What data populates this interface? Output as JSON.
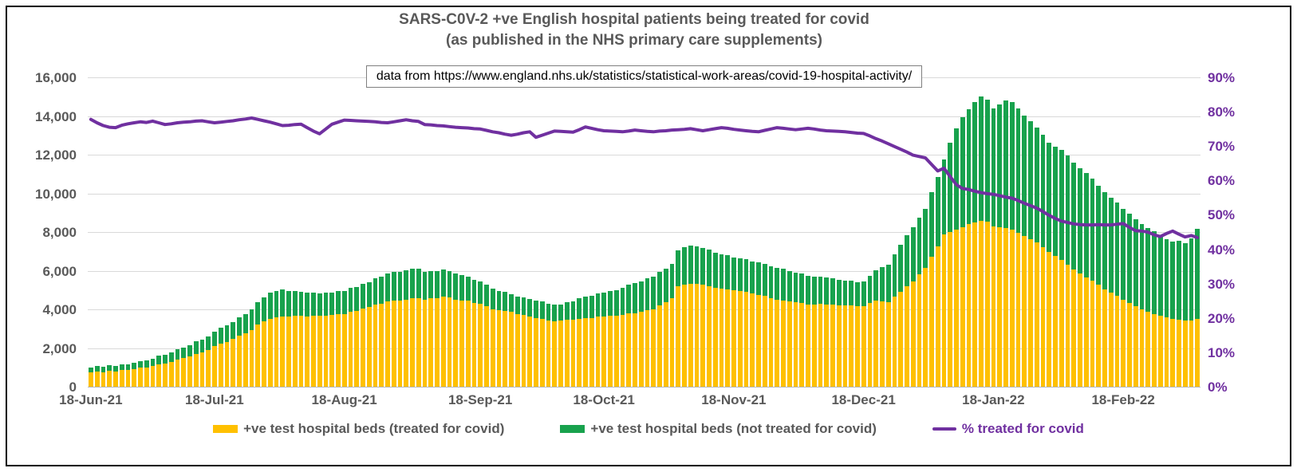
{
  "figure": {
    "title_line1": "SARS-C0V-2 +ve English hospital patients being treated for covid",
    "title_line2": "(as published in the NHS primary care supplements)",
    "source_note": "data from https://www.england.nhs.uk/statistics/statistical-work-areas/covid-19-hospital-activity/"
  },
  "colors": {
    "treated_bar": "#FFC000",
    "not_treated_bar": "#18A24D",
    "pct_line": "#7030A0",
    "axis_text": "#595959",
    "right_axis_text": "#7030A0",
    "gridline": "#D9D9D9"
  },
  "legend": {
    "treated_label": "+ve test hospital beds (treated for covid)",
    "not_treated_label": "+ve test hospital beds (not treated for covid)",
    "pct_label": "% treated for covid"
  },
  "chart_data": {
    "type": "bar",
    "subtype": "stacked-bars-with-line",
    "title": "SARS-C0V-2 +ve English hospital patients being treated for covid (as published in the NHS primary care supplements)",
    "grid": "horizontal",
    "legend_position": "bottom",
    "left_axis": {
      "max": 16000,
      "ticks": [
        {
          "value": 0,
          "label": "0"
        },
        {
          "value": 2000,
          "label": "2,000"
        },
        {
          "value": 4000,
          "label": "4,000"
        },
        {
          "value": 6000,
          "label": "6,000"
        },
        {
          "value": 8000,
          "label": "8,000"
        },
        {
          "value": 10000,
          "label": "10,000"
        },
        {
          "value": 12000,
          "label": "12,000"
        },
        {
          "value": 14000,
          "label": "14,000"
        },
        {
          "value": 16000,
          "label": "16,000"
        }
      ]
    },
    "right_axis": {
      "max": 90,
      "ticks": [
        {
          "value": 0,
          "label": "0%"
        },
        {
          "value": 10,
          "label": "10%"
        },
        {
          "value": 20,
          "label": "20%"
        },
        {
          "value": 30,
          "label": "30%"
        },
        {
          "value": 40,
          "label": "40%"
        },
        {
          "value": 50,
          "label": "50%"
        },
        {
          "value": 60,
          "label": "60%"
        },
        {
          "value": 70,
          "label": "70%"
        },
        {
          "value": 80,
          "label": "80%"
        },
        {
          "value": 90,
          "label": "90%"
        }
      ]
    },
    "x_ticks": [
      {
        "label": "18-Jun-21",
        "index": 0
      },
      {
        "label": "18-Jul-21",
        "index": 20
      },
      {
        "label": "18-Aug-21",
        "index": 41
      },
      {
        "label": "18-Sep-21",
        "index": 63
      },
      {
        "label": "18-Oct-21",
        "index": 83
      },
      {
        "label": "18-Nov-21",
        "index": 104
      },
      {
        "label": "18-Dec-21",
        "index": 125
      },
      {
        "label": "18-Jan-22",
        "index": 146
      },
      {
        "label": "18-Feb-22",
        "index": 167
      }
    ],
    "series": [
      {
        "name": "+ve test hospital beds (treated for covid)",
        "type": "bar",
        "stack": "beds",
        "axis": "left",
        "color": "#FFC000",
        "values": [
          790,
          830,
          795,
          860,
          840,
          890,
          895,
          950,
          1020,
          1035,
          1100,
          1195,
          1250,
          1325,
          1460,
          1530,
          1610,
          1750,
          1820,
          1950,
          2130,
          2270,
          2350,
          2500,
          2685,
          2790,
          2980,
          3250,
          3420,
          3550,
          3630,
          3660,
          3655,
          3700,
          3700,
          3690,
          3710,
          3700,
          3730,
          3760,
          3800,
          3810,
          3915,
          3960,
          4090,
          4150,
          4270,
          4330,
          4450,
          4500,
          4495,
          4550,
          4605,
          4620,
          4550,
          4620,
          4630,
          4700,
          4655,
          4555,
          4510,
          4475,
          4385,
          4350,
          4225,
          4060,
          3985,
          3970,
          3900,
          3800,
          3760,
          3660,
          3600,
          3565,
          3475,
          3440,
          3445,
          3500,
          3500,
          3565,
          3600,
          3605,
          3655,
          3660,
          3710,
          3710,
          3760,
          3825,
          3850,
          3905,
          4010,
          4060,
          4260,
          4400,
          4600,
          5250,
          5320,
          5360,
          5345,
          5300,
          5255,
          5145,
          5100,
          5080,
          5020,
          5000,
          4950,
          4850,
          4800,
          4730,
          4615,
          4550,
          4515,
          4435,
          4400,
          4365,
          4300,
          4285,
          4315,
          4300,
          4295,
          4245,
          4240,
          4250,
          4210,
          4220,
          4365,
          4480,
          4470,
          4420,
          4690,
          4930,
          5235,
          5500,
          5850,
          6170,
          6750,
          7300,
          7900,
          8050,
          8150,
          8300,
          8450,
          8540,
          8610,
          8560,
          8350,
          8300,
          8250,
          8150,
          8020,
          7850,
          7690,
          7500,
          7270,
          7000,
          6785,
          6600,
          6365,
          6100,
          5885,
          5700,
          5515,
          5300,
          5085,
          4900,
          4740,
          4550,
          4390,
          4200,
          4035,
          3900,
          3815,
          3700,
          3610,
          3550,
          3500,
          3480,
          3450,
          3540
        ]
      },
      {
        "name": "+ve test hospital beds (not treated for covid)",
        "type": "bar",
        "stack": "beds",
        "axis": "left",
        "color": "#18A24D",
        "values": [
          230,
          270,
          265,
          290,
          290,
          320,
          305,
          330,
          360,
          365,
          400,
          435,
          450,
          475,
          530,
          550,
          580,
          630,
          660,
          710,
          770,
          820,
          850,
          900,
          965,
          1010,
          1070,
          1150,
          1260,
          1350,
          1380,
          1400,
          1335,
          1310,
          1250,
          1200,
          1200,
          1160,
          1160,
          1160,
          1180,
          1190,
          1225,
          1240,
          1280,
          1300,
          1360,
          1390,
          1450,
          1480,
          1475,
          1500,
          1525,
          1530,
          1410,
          1420,
          1400,
          1410,
          1385,
          1335,
          1310,
          1265,
          1195,
          1150,
          1115,
          1060,
          1005,
          980,
          920,
          910,
          910,
          900,
          900,
          885,
          855,
          840,
          865,
          920,
          950,
          1035,
          1100,
          1135,
          1205,
          1240,
          1300,
          1340,
          1400,
          1485,
          1550,
          1585,
          1640,
          1680,
          1730,
          1750,
          1800,
          1850,
          1930,
          1990,
          1955,
          1900,
          1875,
          1825,
          1800,
          1780,
          1720,
          1700,
          1700,
          1680,
          1680,
          1680,
          1650,
          1650,
          1625,
          1570,
          1550,
          1525,
          1480,
          1445,
          1435,
          1400,
          1370,
          1310,
          1280,
          1280,
          1255,
          1260,
          1425,
          1570,
          1760,
          1930,
          2210,
          2470,
          2645,
          2800,
          2950,
          3080,
          3350,
          3600,
          3900,
          4600,
          5250,
          5700,
          5950,
          6210,
          6440,
          6340,
          6100,
          6350,
          6600,
          6600,
          6410,
          6200,
          6090,
          5950,
          5810,
          5650,
          5665,
          5700,
          5635,
          5550,
          5465,
          5400,
          5285,
          5150,
          5015,
          4900,
          4810,
          4700,
          4610,
          4500,
          4415,
          4350,
          4265,
          4150,
          4070,
          4000,
          4100,
          3970,
          4250,
          4660
        ]
      },
      {
        "name": "% treated for covid",
        "type": "line",
        "axis": "right",
        "color": "#7030A0",
        "values": [
          78.0,
          77.0,
          76.2,
          75.7,
          75.6,
          76.3,
          76.7,
          77.0,
          77.3,
          77.1,
          77.5,
          77.0,
          76.5,
          76.7,
          77.0,
          77.2,
          77.3,
          77.5,
          77.6,
          77.3,
          77.0,
          77.2,
          77.4,
          77.6,
          77.9,
          78.1,
          78.4,
          78.0,
          77.6,
          77.2,
          76.7,
          76.2,
          76.3,
          76.5,
          76.6,
          75.6,
          74.6,
          73.8,
          75.2,
          76.6,
          77.2,
          77.8,
          77.7,
          77.6,
          77.5,
          77.4,
          77.3,
          77.1,
          77.0,
          77.3,
          77.6,
          77.9,
          77.6,
          77.4,
          76.5,
          76.4,
          76.2,
          76.1,
          75.9,
          75.7,
          75.6,
          75.5,
          75.3,
          75.2,
          74.8,
          74.4,
          74.1,
          73.7,
          73.4,
          73.7,
          74.1,
          74.4,
          72.8,
          73.4,
          74.0,
          74.6,
          74.5,
          74.4,
          74.3,
          75.0,
          75.8,
          75.4,
          75.0,
          74.7,
          74.6,
          74.5,
          74.4,
          74.6,
          74.9,
          74.7,
          74.5,
          74.4,
          74.6,
          74.7,
          74.9,
          75.0,
          75.1,
          75.3,
          75.0,
          74.7,
          75.0,
          75.3,
          75.6,
          75.4,
          75.1,
          74.9,
          74.7,
          74.5,
          74.4,
          74.8,
          75.2,
          75.6,
          75.4,
          75.2,
          75.0,
          75.2,
          75.4,
          75.2,
          74.9,
          74.7,
          74.6,
          74.5,
          74.4,
          74.2,
          74.0,
          73.9,
          73.2,
          72.4,
          71.7,
          70.9,
          70.1,
          69.3,
          68.5,
          67.6,
          67.2,
          66.8,
          64.9,
          63.0,
          63.8,
          61.4,
          59.0,
          57.9,
          57.6,
          57.1,
          56.7,
          56.4,
          56.2,
          55.8,
          55.4,
          55.1,
          54.4,
          53.6,
          52.9,
          52.2,
          51.2,
          50.1,
          49.2,
          48.4,
          48.0,
          47.6,
          47.4,
          47.3,
          47.3,
          47.4,
          47.3,
          47.3,
          47.5,
          47.7,
          46.6,
          45.6,
          45.5,
          45.2,
          44.4,
          43.9,
          44.8,
          45.5,
          44.6,
          43.8,
          44.2,
          43.6
        ]
      }
    ]
  }
}
